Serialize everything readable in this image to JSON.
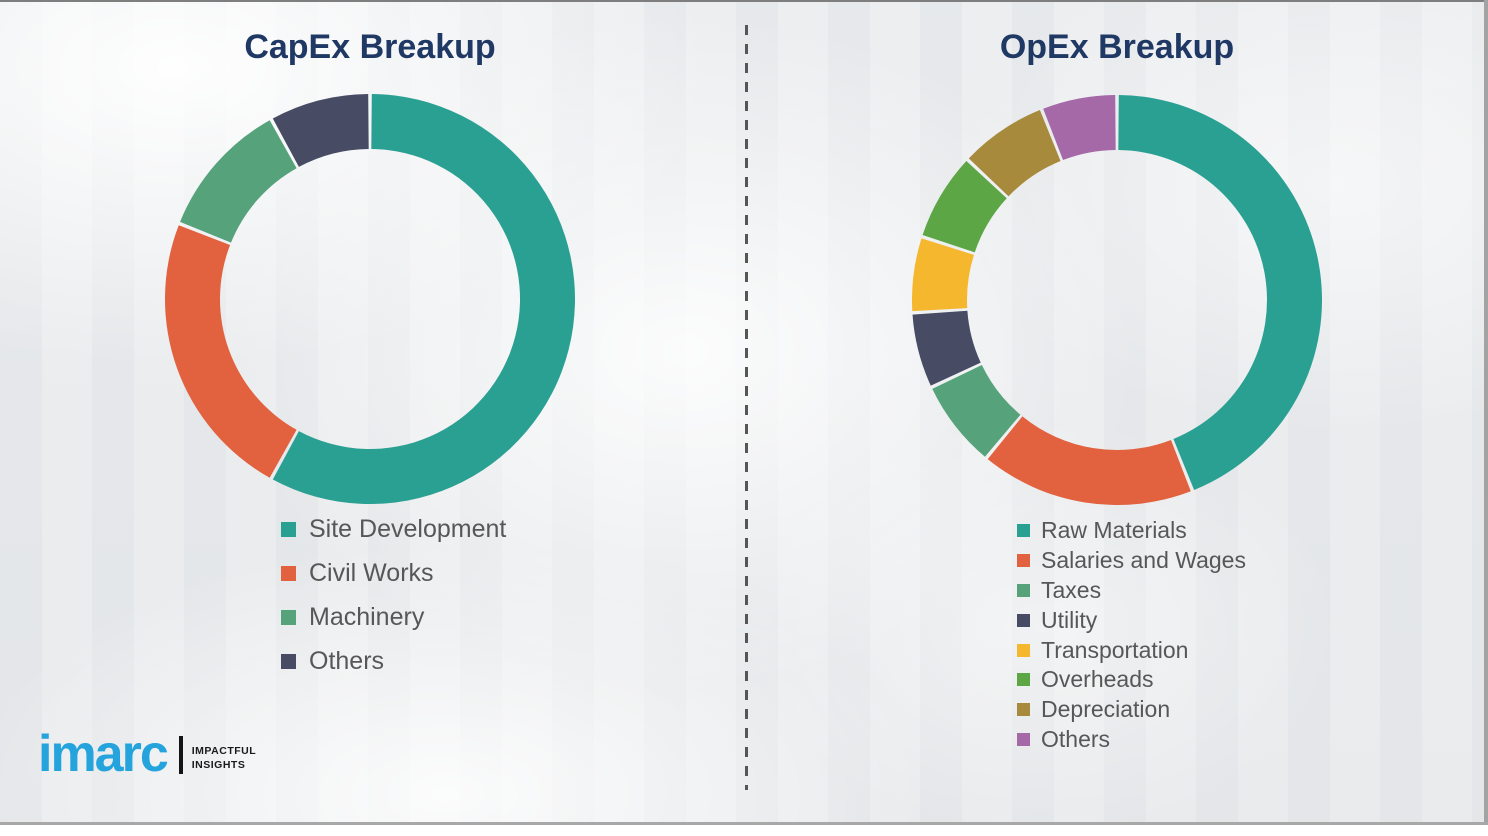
{
  "chart_data": [
    {
      "type": "pie",
      "variant": "donut",
      "title": "CapEx Breakup",
      "labels": [
        "Site Development",
        "Civil Works",
        "Machinery",
        "Others"
      ],
      "values": [
        58,
        23,
        11,
        8
      ],
      "colors": [
        "#2AA093",
        "#E2613E",
        "#55A27B",
        "#474B63"
      ],
      "units": "%",
      "start_angle_deg": 0,
      "direction": "clockwise",
      "legend_position": "below-left",
      "inner_radius_ratio": 0.73
    },
    {
      "type": "pie",
      "variant": "donut",
      "title": "OpEx Breakup",
      "labels": [
        "Raw Materials",
        "Salaries and Wages",
        "Taxes",
        "Utility",
        "Transportation",
        "Overheads",
        "Depreciation",
        "Others"
      ],
      "values": [
        44,
        17,
        7,
        6,
        6,
        7,
        7,
        6
      ],
      "colors": [
        "#2AA093",
        "#E2613E",
        "#55A27B",
        "#474B63",
        "#F5B72D",
        "#5CA645",
        "#A78A3C",
        "#A569A8"
      ],
      "units": "%",
      "start_angle_deg": 0,
      "direction": "clockwise",
      "legend_position": "below-left",
      "inner_radius_ratio": 0.73
    }
  ],
  "style": {
    "title_color": "#1F3864",
    "legend_text_color": "#575757",
    "divider_color": "#565656"
  },
  "logo": {
    "brand": "imarc",
    "tagline_line1": "IMPACTFUL",
    "tagline_line2": "INSIGHTS",
    "brand_color": "#25A3DC"
  }
}
